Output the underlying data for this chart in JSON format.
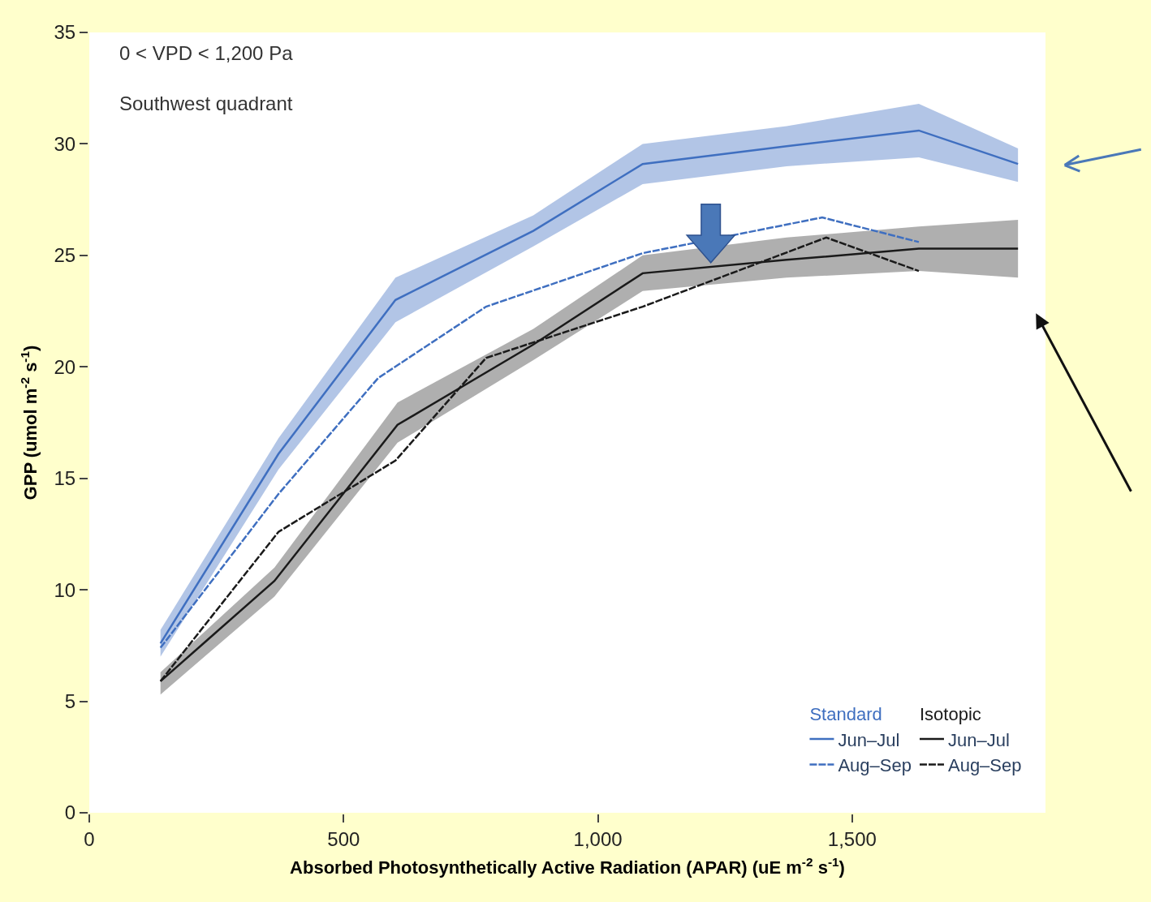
{
  "chart_data": {
    "type": "line",
    "xlabel": "Absorbed Photosynthetically Active Radiation (APAR) (uE m$^{-2}$ s$^{-1}$)",
    "ylabel": "GPP (umol m$^{-2}$ s$^{-1}$)",
    "annotations": [
      "0 < VPD < 1,200 Pa",
      "Southwest quadrant",
      "Standard",
      "Isotopic"
    ],
    "xlim": [
      0,
      1880
    ],
    "xticks": [
      0,
      500,
      {
        "value": 1000,
        "label": "1,000"
      },
      {
        "value": 1500,
        "label": "1,500"
      }
    ],
    "ylim": [
      0,
      35
    ],
    "yticks": [
      0,
      5,
      10,
      15,
      20,
      25,
      30,
      35
    ],
    "legend": "bottom right",
    "marker": "none",
    "series": [
      {
        "name": "Jun–Jul",
        "color": "#3f6fc0",
        "line_style": "solid",
        "x": [
          140,
          372,
          602,
          873,
          1088,
          1371,
          1631,
          1826
        ],
        "values": [
          7.6,
          16.1,
          23.0,
          26.1,
          29.1,
          29.9,
          30.6,
          29.1
        ],
        "lower": [
          7.0,
          15.4,
          22.0,
          25.4,
          28.2,
          29.0,
          29.4,
          28.3
        ],
        "upper": [
          8.2,
          16.8,
          24.0,
          26.8,
          30.0,
          30.8,
          31.8,
          29.8
        ]
      },
      {
        "name": "Aug–Sep",
        "color": "#3f6fc0",
        "line_style": "dashed",
        "x": [
          140,
          372,
          568,
          780,
          1088,
          1441,
          1631
        ],
        "values": [
          7.4,
          14.3,
          19.5,
          22.7,
          25.1,
          26.7,
          25.6
        ]
      },
      {
        "name": "Jun–Jul",
        "color": "#1a1a1a",
        "line_style": "solid",
        "x": [
          140,
          364,
          606,
          873,
          1088,
          1371,
          1631,
          1826
        ],
        "values": [
          5.9,
          10.4,
          17.4,
          21.0,
          24.2,
          24.8,
          25.3,
          25.3
        ],
        "lower": [
          5.3,
          9.7,
          16.6,
          20.3,
          23.4,
          24.0,
          24.3,
          24.0
        ],
        "upper": [
          6.3,
          11.0,
          18.4,
          21.7,
          25.0,
          25.8,
          26.3,
          26.6
        ]
      },
      {
        "name": "Aug–Sep",
        "color": "#1a1a1a",
        "line_style": "dashed",
        "x": [
          140,
          372,
          602,
          780,
          1088,
          1449,
          1631
        ],
        "values": [
          5.9,
          12.6,
          15.8,
          20.4,
          22.7,
          25.8,
          24.3
        ]
      }
    ]
  }
}
